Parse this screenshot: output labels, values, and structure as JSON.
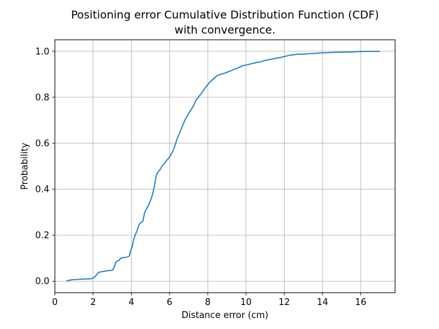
{
  "chart_data": {
    "type": "line",
    "title_lines": [
      "Positioning error Cumulative Distribution Function (CDF)",
      "with convergence."
    ],
    "xlabel": "Distance error (cm)",
    "ylabel": "Probability",
    "xlim": [
      0,
      17.8
    ],
    "ylim": [
      -0.05,
      1.05
    ],
    "xticks": [
      0,
      2,
      4,
      6,
      8,
      10,
      12,
      14,
      16
    ],
    "xtick_labels": [
      "0",
      "2",
      "4",
      "6",
      "8",
      "10",
      "12",
      "14",
      "16"
    ],
    "yticks": [
      0.0,
      0.2,
      0.4,
      0.6,
      0.8,
      1.0
    ],
    "ytick_labels": [
      "0.0",
      "0.2",
      "0.4",
      "0.6",
      "0.8",
      "1.0"
    ],
    "grid": true,
    "line_color": "#1f77b4",
    "series": [
      {
        "x": [
          0.6,
          0.8,
          1.0,
          1.5,
          1.95,
          2.1,
          2.25,
          2.35,
          2.5,
          2.6,
          2.7,
          2.9,
          3.0,
          3.1,
          3.2,
          3.35,
          3.45,
          3.6,
          3.8,
          3.9,
          3.95,
          4.05,
          4.1,
          4.2,
          4.3,
          4.4,
          4.5,
          4.6,
          4.7,
          4.8,
          4.9,
          5.0,
          5.1,
          5.2,
          5.3,
          5.4,
          5.5,
          5.6,
          5.8,
          6.0,
          6.2,
          6.4,
          6.6,
          6.8,
          7.0,
          7.2,
          7.4,
          7.5,
          7.7,
          7.9,
          8.1,
          8.3,
          8.5,
          8.7,
          8.9,
          9.2,
          9.5,
          9.7,
          9.8,
          10.0,
          10.3,
          10.5,
          10.8,
          11.0,
          11.3,
          11.6,
          11.8,
          12.0,
          12.3,
          12.6,
          13.0,
          13.5,
          13.8,
          14.0,
          14.5,
          15.0,
          15.5,
          15.8,
          16.2,
          16.6,
          17.0
        ],
        "y": [
          0.0,
          0.005,
          0.007,
          0.009,
          0.011,
          0.02,
          0.035,
          0.04,
          0.042,
          0.043,
          0.045,
          0.047,
          0.047,
          0.06,
          0.085,
          0.09,
          0.1,
          0.103,
          0.105,
          0.11,
          0.13,
          0.15,
          0.175,
          0.2,
          0.22,
          0.245,
          0.255,
          0.26,
          0.3,
          0.315,
          0.33,
          0.35,
          0.375,
          0.41,
          0.46,
          0.475,
          0.485,
          0.5,
          0.52,
          0.54,
          0.57,
          0.62,
          0.66,
          0.7,
          0.73,
          0.755,
          0.79,
          0.8,
          0.82,
          0.845,
          0.865,
          0.88,
          0.895,
          0.9,
          0.905,
          0.915,
          0.925,
          0.932,
          0.937,
          0.94,
          0.946,
          0.95,
          0.955,
          0.96,
          0.965,
          0.97,
          0.973,
          0.977,
          0.983,
          0.986,
          0.988,
          0.99,
          0.992,
          0.993,
          0.995,
          0.996,
          0.997,
          0.998,
          0.999,
          0.9995,
          1.0
        ]
      }
    ]
  }
}
